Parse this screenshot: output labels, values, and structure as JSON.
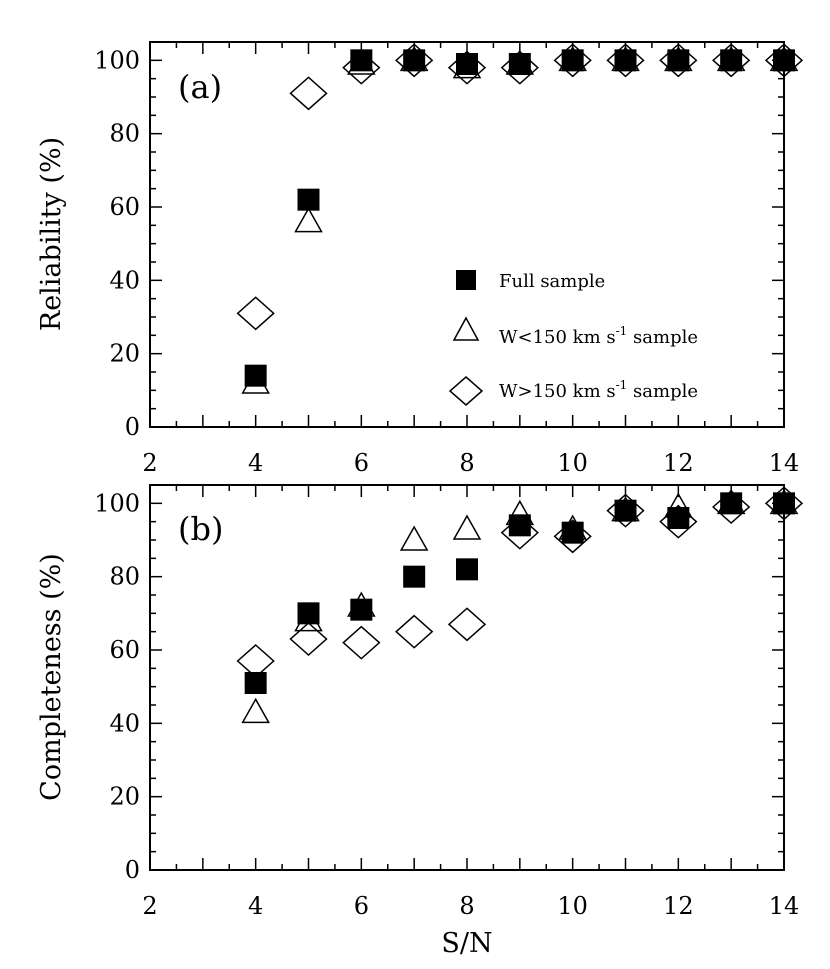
{
  "figure": {
    "xlabel": "S/N",
    "legend": {
      "full": "Full sample",
      "narrow_prefix": "W<150  km s",
      "wide_prefix": "W>150  km s",
      "exponent": "-1",
      "suffix": "sample"
    }
  },
  "chart_data": [
    {
      "type": "scatter",
      "panel": "(a)",
      "title": "(a)",
      "xlabel": "",
      "ylabel": "Reliability (%)",
      "xlim": [
        2,
        14
      ],
      "ylim": [
        0,
        105
      ],
      "xticks": [
        2,
        4,
        6,
        8,
        10,
        12,
        14
      ],
      "yticks": [
        0,
        20,
        40,
        60,
        80,
        100
      ],
      "legend_position": "center-right",
      "series": [
        {
          "name": "Full sample",
          "marker": "filled-square",
          "x": [
            4,
            5,
            6,
            7,
            8,
            9,
            10,
            11,
            12,
            13,
            14
          ],
          "y": [
            14,
            62,
            100,
            100,
            99,
            99,
            100,
            100,
            100,
            100,
            100
          ]
        },
        {
          "name": "W<150 km s^-1 sample",
          "marker": "open-triangle",
          "x": [
            4,
            5,
            6,
            7,
            8,
            9,
            10,
            11,
            12,
            13,
            14
          ],
          "y": [
            12,
            56,
            99,
            100,
            98,
            99,
            100,
            100,
            100,
            100,
            100
          ]
        },
        {
          "name": "W>150 km s^-1 sample",
          "marker": "open-diamond",
          "x": [
            4,
            5,
            6,
            7,
            8,
            9,
            10,
            11,
            12,
            13,
            14
          ],
          "y": [
            31,
            91,
            98,
            100,
            98,
            98,
            100,
            100,
            100,
            100,
            100
          ]
        }
      ]
    },
    {
      "type": "scatter",
      "panel": "(b)",
      "title": "(b)",
      "xlabel": "S/N",
      "ylabel": "Completeness (%)",
      "xlim": [
        2,
        14
      ],
      "ylim": [
        0,
        105
      ],
      "xticks": [
        2,
        4,
        6,
        8,
        10,
        12,
        14
      ],
      "yticks": [
        0,
        20,
        40,
        60,
        80,
        100
      ],
      "series": [
        {
          "name": "Full sample",
          "marker": "filled-square",
          "x": [
            4,
            5,
            6,
            7,
            8,
            9,
            10,
            11,
            12,
            13,
            14
          ],
          "y": [
            51,
            70,
            71,
            80,
            82,
            94,
            92,
            98,
            96,
            100,
            100
          ]
        },
        {
          "name": "W<150 km s^-1 sample",
          "marker": "open-triangle",
          "x": [
            4,
            5,
            6,
            7,
            8,
            9,
            10,
            11,
            12,
            13,
            14
          ],
          "y": [
            43,
            68,
            72,
            90,
            93,
            97,
            93,
            98,
            99,
            100,
            100
          ]
        },
        {
          "name": "W>150 km s^-1 sample",
          "marker": "open-diamond",
          "x": [
            4,
            5,
            6,
            7,
            8,
            9,
            10,
            11,
            12,
            13,
            14
          ],
          "y": [
            57,
            63,
            62,
            65,
            67,
            92,
            91,
            98,
            95,
            99,
            100
          ]
        }
      ]
    }
  ]
}
